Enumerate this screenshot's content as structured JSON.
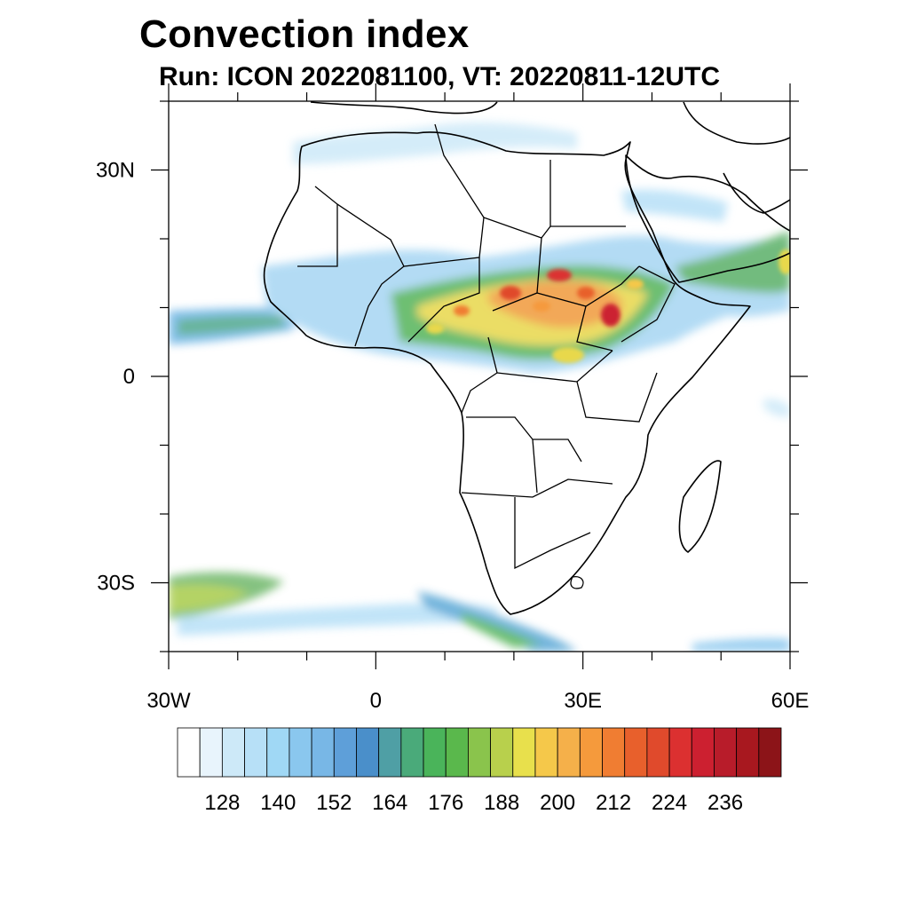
{
  "title": "Convection index",
  "subtitle": "Run: ICON 2022081100,  VT: 20220811-12UTC",
  "map": {
    "lon_range": [
      -30,
      60
    ],
    "lat_range": [
      -40,
      40
    ],
    "lat_ticks": [
      {
        "lat": 30,
        "label": "30N"
      },
      {
        "lat": 0,
        "label": "0"
      },
      {
        "lat": -30,
        "label": "30S"
      }
    ],
    "lon_ticks": [
      {
        "lon": -30,
        "label": "30W"
      },
      {
        "lon": 0,
        "label": "0"
      },
      {
        "lon": 30,
        "label": "30E"
      },
      {
        "lon": 60,
        "label": "60E"
      }
    ]
  },
  "colorbar": {
    "colors": [
      "#ffffff",
      "#e8f4fc",
      "#cde9f8",
      "#b7e0f7",
      "#a0d8f5",
      "#8ac7ee",
      "#78b7e6",
      "#5e9fd9",
      "#4a8fca",
      "#4f9fa5",
      "#4aaa7a",
      "#4ab45a",
      "#5ab84c",
      "#8ac44c",
      "#b8d04c",
      "#e8e04c",
      "#f5c84a",
      "#f5b04a",
      "#f59a3c",
      "#f07d32",
      "#e8602c",
      "#e04a2c",
      "#dc3030",
      "#cc2030",
      "#b81c2a",
      "#a8181f",
      "#8c1418"
    ],
    "labels": [
      "128",
      "140",
      "152",
      "164",
      "176",
      "188",
      "200",
      "212",
      "224",
      "236"
    ]
  }
}
